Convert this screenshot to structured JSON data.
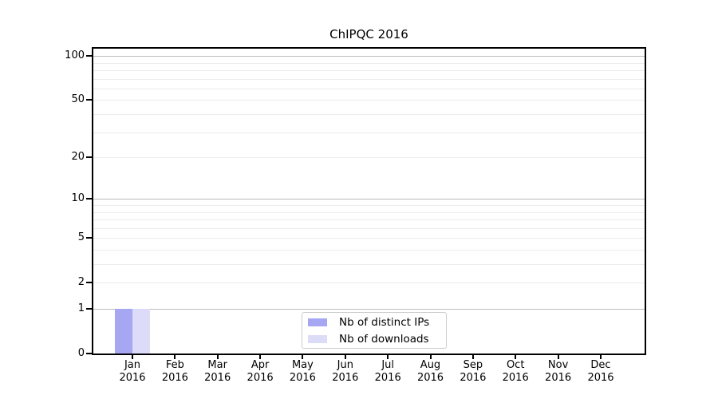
{
  "chart_data": {
    "type": "bar",
    "title": "ChIPQC 2016",
    "categories": [
      "Jan 2016",
      "Feb 2016",
      "Mar 2016",
      "Apr 2016",
      "May 2016",
      "Jun 2016",
      "Jul 2016",
      "Aug 2016",
      "Sep 2016",
      "Oct 2016",
      "Nov 2016",
      "Dec 2016"
    ],
    "x_tick_months": [
      "Jan",
      "Feb",
      "Mar",
      "Apr",
      "May",
      "Jun",
      "Jul",
      "Aug",
      "Sep",
      "Oct",
      "Nov",
      "Dec"
    ],
    "x_tick_year": "2016",
    "series": [
      {
        "name": "Nb of distinct IPs",
        "color": "#a6a6f2",
        "values": [
          1,
          0,
          0,
          0,
          0,
          0,
          0,
          0,
          0,
          0,
          0,
          0
        ]
      },
      {
        "name": "Nb of downloads",
        "color": "#dcdcf9",
        "values": [
          1,
          0,
          0,
          0,
          0,
          0,
          0,
          0,
          0,
          0,
          0,
          0
        ]
      }
    ],
    "yscale": "log1p",
    "ylim": [
      0,
      115
    ],
    "yticks": [
      0,
      1,
      2,
      5,
      10,
      20,
      50,
      100
    ],
    "y_major_gridlines": [
      1,
      10,
      100
    ],
    "y_minor_gridlines": [
      2,
      3,
      4,
      5,
      6,
      7,
      8,
      9,
      20,
      30,
      40,
      50,
      60,
      70,
      80,
      90
    ],
    "grid": "horizontal",
    "legend_position": "lower center",
    "colors": {
      "frame": "#000000",
      "major_grid": "#bbbbbb",
      "minor_grid": "#ececec",
      "legend_border": "#cccccc"
    }
  }
}
